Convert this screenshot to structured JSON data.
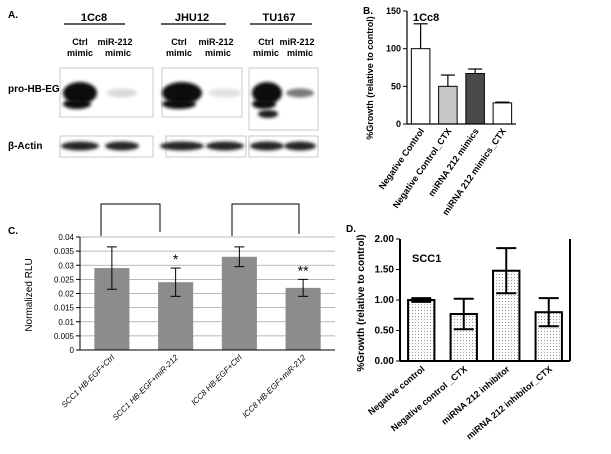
{
  "panels": {
    "a": {
      "letter": "A.",
      "cell_lines": [
        "1Cc8",
        "JHU12",
        "TU167"
      ],
      "lane_labels": [
        {
          "top": "Ctrl",
          "bottom": "mimic"
        },
        {
          "top": "miR-212",
          "bottom": "mimic"
        }
      ],
      "row_labels": [
        "pro-HB-EGF",
        "β-Actin"
      ],
      "band_intensity": {
        "pro_hb_egf": [
          [
            1.0,
            0.15
          ],
          [
            1.0,
            0.12
          ],
          [
            1.0,
            0.55
          ]
        ],
        "beta_actin": [
          [
            0.95,
            0.95
          ],
          [
            0.95,
            0.95
          ],
          [
            0.95,
            0.95
          ]
        ]
      }
    }
  },
  "chart_data": [
    {
      "panel": "B.",
      "type": "bar",
      "title": "1Cc8",
      "ylabel": "%Growth (relative to control)",
      "categories": [
        "Negative Control",
        "Negative Control_CTX",
        "miRNA 212 mimics",
        "miRNA 212 mimics_CTX"
      ],
      "values": [
        100,
        50,
        67,
        28
      ],
      "errors": [
        33,
        15,
        6,
        1
      ],
      "fills": [
        "#ffffff",
        "#c8c8c8",
        "#4a4a4a",
        "#ffffff"
      ],
      "ylim": [
        0,
        150
      ],
      "yticks": [
        "0",
        "50",
        "100",
        "150"
      ]
    },
    {
      "panel": "C.",
      "type": "bar",
      "title": "",
      "ylabel": "Normalized RLU",
      "categories": [
        "SCC1 HB-EGF+Ctrl",
        "SCC1 HB-EGF+miR-212",
        "lCC8 HB-EGF+Ctrl",
        "lCC8 HB-EGF+miR-212"
      ],
      "values": [
        0.029,
        0.024,
        0.033,
        0.022
      ],
      "errors": [
        0.0075,
        0.005,
        0.0035,
        0.003
      ],
      "fills": [
        "#8c8c8c",
        "#8c8c8c",
        "#8c8c8c",
        "#8c8c8c"
      ],
      "ylim": [
        0,
        0.04
      ],
      "yticks": [
        "0",
        "0.005",
        "0.01",
        "0.015",
        "0.02",
        "0.025",
        "0.03",
        "0.035",
        "0.04"
      ],
      "grid": true,
      "annotations": [
        "*",
        "**"
      ]
    },
    {
      "panel": "D.",
      "type": "bar",
      "title": "SCC1",
      "ylabel": "%Growth (relative to control)",
      "categories": [
        "Negative control",
        "Negative control _CTX",
        "miRNA 212 inhibitor",
        "miRNA 212 inhibitor_CTX"
      ],
      "values": [
        1.0,
        0.77,
        1.48,
        0.8
      ],
      "errors": [
        0.03,
        0.25,
        0.37,
        0.23
      ],
      "fills": [
        "dotted",
        "dotted",
        "dotted",
        "dotted"
      ],
      "ylim": [
        0,
        2.0
      ],
      "yticks": [
        "0.00",
        "0.50",
        "1.00",
        "1.50",
        "2.00"
      ]
    }
  ]
}
